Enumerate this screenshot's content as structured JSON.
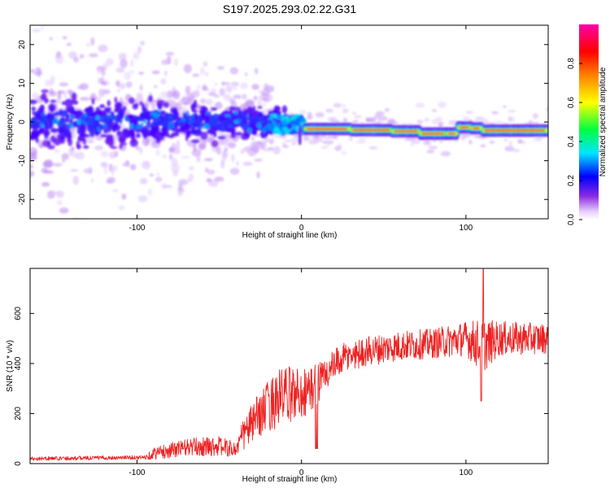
{
  "title": "S197.2025.293.02.22.G31",
  "chart_data": [
    {
      "type": "heatmap",
      "name": "spectrogram",
      "xlabel": "Height of straight line (km)",
      "ylabel": "Frequency (Hz)",
      "xlim": [
        -165,
        150
      ],
      "ylim": [
        -25,
        25
      ],
      "xticks": [
        -100,
        0,
        100
      ],
      "xtick_labels": [
        "-100",
        "0",
        "100"
      ],
      "yticks": [
        -20,
        -10,
        0,
        10,
        20
      ],
      "ytick_labels": [
        "-20",
        "-10",
        "0",
        "10",
        "20"
      ],
      "colorbar": {
        "label": "Normalized spectral amplitude",
        "range": [
          0,
          1
        ],
        "ticks": [
          0.0,
          0.2,
          0.4,
          0.6,
          0.8
        ],
        "tick_labels": [
          "0.0",
          "0.2",
          "0.4",
          "0.6",
          "0.8"
        ],
        "colormap": "rainbow (white - violet - blue - cyan - green - yellow - red - magenta)"
      },
      "features": [
        {
          "x_range": [
            -165,
            -20
          ],
          "freq_center": 0,
          "freq_spread": 5,
          "amplitude": "low 0.05-0.3, scattered noise to +/-25 Hz"
        },
        {
          "x_range": [
            -20,
            0
          ],
          "freq_center": -0.5,
          "amplitude": "0.2-0.5"
        },
        {
          "x_range": [
            0,
            150
          ],
          "freq_center": -2.2,
          "amplitude": "0.8-1.0 narrow band"
        }
      ]
    },
    {
      "type": "line",
      "name": "snr",
      "xlabel": "Height of straight line (km)",
      "ylabel": "SNR (10 * v/v)",
      "xlim": [
        -165,
        150
      ],
      "ylim": [
        0,
        780
      ],
      "xticks": [
        -100,
        0,
        100
      ],
      "xtick_labels": [
        "-100",
        "0",
        "100"
      ],
      "yticks": [
        0,
        200,
        400,
        600
      ],
      "ytick_labels": [
        "0",
        "200",
        "400",
        "600"
      ],
      "line_color": "#ee2222",
      "envelope": {
        "x": [
          -165,
          -95,
          -90,
          -70,
          -50,
          -40,
          -35,
          -25,
          -15,
          -5,
          5,
          15,
          25,
          40,
          60,
          80,
          100,
          110,
          120,
          150
        ],
        "mean": [
          20,
          25,
          40,
          65,
          70,
          55,
          120,
          200,
          260,
          280,
          290,
          360,
          420,
          450,
          470,
          480,
          500,
          470,
          500,
          500
        ],
        "amp": [
          8,
          8,
          25,
          35,
          40,
          30,
          70,
          90,
          120,
          110,
          100,
          70,
          60,
          60,
          60,
          60,
          70,
          110,
          70,
          60
        ]
      }
    }
  ]
}
